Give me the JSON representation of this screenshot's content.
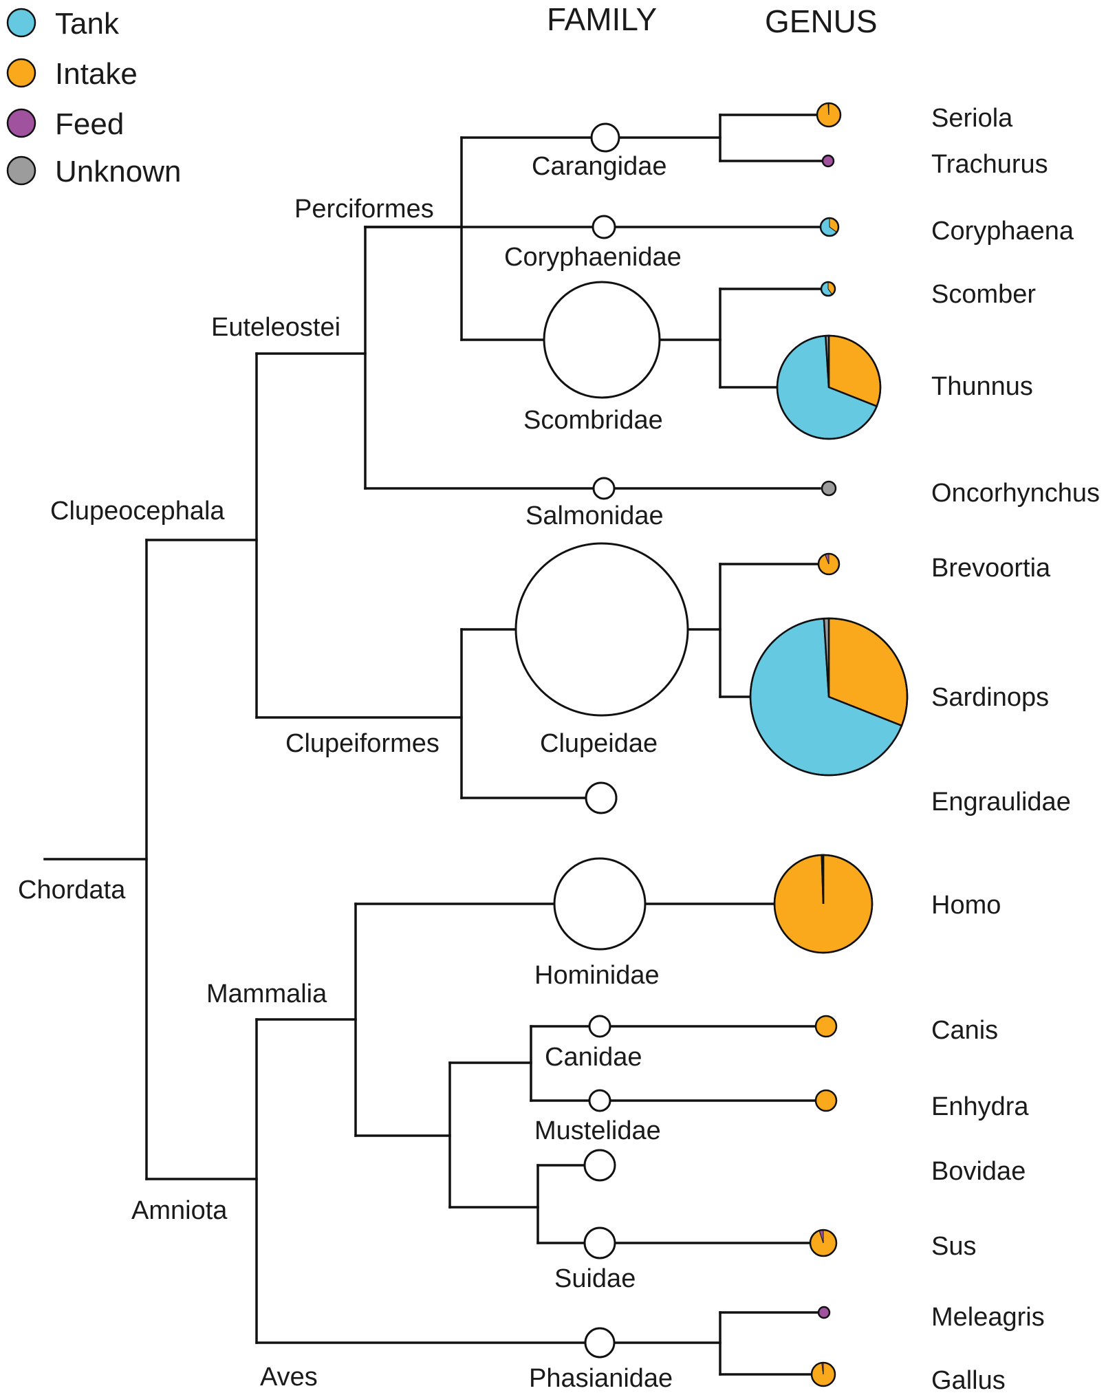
{
  "headers": {
    "family": "FAMILY",
    "genus": "GENUS"
  },
  "legend": [
    {
      "key": "tank",
      "label": "Tank",
      "color": "#65C9E2"
    },
    {
      "key": "intake",
      "label": "Intake",
      "color": "#F9A91B"
    },
    {
      "key": "feed",
      "label": "Feed",
      "color": "#A0529F"
    },
    {
      "key": "unknown",
      "label": "Unknown",
      "color": "#9C9C9C"
    }
  ],
  "clades": {
    "chordata": "Chordata",
    "clupeocephala": "Clupeocephala",
    "euteleostei": "Euteleostei",
    "perciformes": "Perciformes",
    "clupeiformes": "Clupeiformes",
    "amniota": "Amniota",
    "mammalia": "Mammalia",
    "aves": "Aves"
  },
  "families": {
    "carangidae": "Carangidae",
    "coryphaenidae": "Coryphaenidae",
    "scombridae": "Scombridae",
    "salmonidae": "Salmonidae",
    "clupeidae": "Clupeidae",
    "hominidae": "Hominidae",
    "canidae": "Canidae",
    "mustelidae": "Mustelidae",
    "suidae": "Suidae",
    "phasianidae": "Phasianidae"
  },
  "genera": {
    "seriola": "Seriola",
    "trachurus": "Trachurus",
    "coryphaena": "Coryphaena",
    "scomber": "Scomber",
    "thunnus": "Thunnus",
    "oncorhynchus": "Oncorhynchus",
    "brevoortia": "Brevoortia",
    "sardinops": "Sardinops",
    "engraulidae": "Engraulidae",
    "homo": "Homo",
    "canis": "Canis",
    "enhydra": "Enhydra",
    "bovidae": "Bovidae",
    "sus": "Sus",
    "meleagris": "Meleagris",
    "gallus": "Gallus"
  },
  "pies": {
    "seriola": {
      "tank": 0,
      "intake": 0.99,
      "feed": 0,
      "unknown": 0.01
    },
    "trachurus": {
      "tank": 0,
      "intake": 0,
      "feed": 1,
      "unknown": 0
    },
    "coryphaena": {
      "tank": 0.65,
      "intake": 0.35,
      "feed": 0,
      "unknown": 0
    },
    "scomber": {
      "tank": 0.6,
      "intake": 0.4,
      "feed": 0,
      "unknown": 0
    },
    "thunnus": {
      "tank": 0.68,
      "intake": 0.31,
      "feed": 0,
      "unknown": 0.01
    },
    "oncorhynchus": {
      "tank": 0,
      "intake": 0,
      "feed": 0,
      "unknown": 1
    },
    "brevoortia": {
      "tank": 0,
      "intake": 0.94,
      "feed": 0.06,
      "unknown": 0
    },
    "sardinops": {
      "tank": 0.68,
      "intake": 0.31,
      "feed": 0,
      "unknown": 0.01
    },
    "homo": {
      "tank": 0,
      "intake": 0.995,
      "feed": 0,
      "unknown": 0.005
    },
    "canis": {
      "tank": 0,
      "intake": 1,
      "feed": 0,
      "unknown": 0
    },
    "enhydra": {
      "tank": 0,
      "intake": 1,
      "feed": 0,
      "unknown": 0
    },
    "sus": {
      "tank": 0,
      "intake": 0.95,
      "feed": 0.05,
      "unknown": 0
    },
    "meleagris": {
      "tank": 0,
      "intake": 0,
      "feed": 1,
      "unknown": 0
    },
    "gallus": {
      "tank": 0,
      "intake": 0.98,
      "feed": 0.02,
      "unknown": 0
    }
  }
}
